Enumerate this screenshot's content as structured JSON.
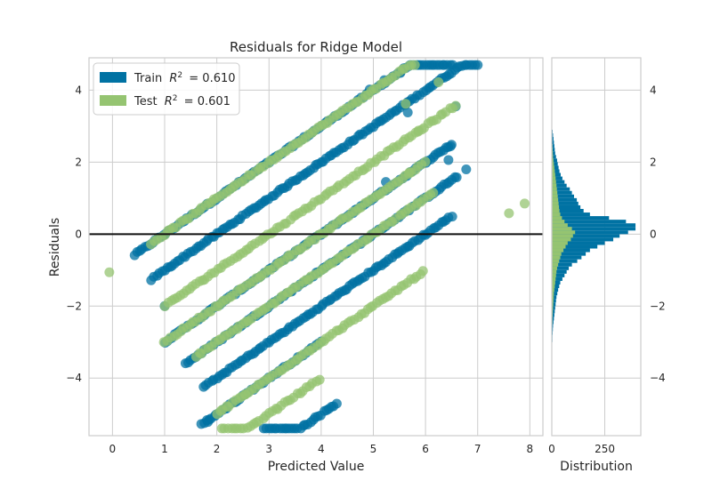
{
  "chart_data": [
    {
      "type": "scatter",
      "title": "Residuals for Ridge Model",
      "xlabel": "Predicted Value",
      "ylabel": "Residuals",
      "xlim": [
        -0.45,
        8.25
      ],
      "ylim": [
        -5.6,
        4.9
      ],
      "xticks": [
        0,
        1,
        2,
        3,
        4,
        5,
        6,
        7,
        8
      ],
      "yticks": [
        -4,
        -2,
        0,
        2,
        4
      ],
      "grid": true,
      "zero_line": 0,
      "legend_position": "top-left",
      "colors": {
        "train": "#0072a3",
        "test": "#95c471",
        "zero_line": "#111111",
        "grid": "#cccccc",
        "axes": "#cccccc"
      },
      "series": [
        {
          "name": "Train",
          "legend_label": "Train $R^2 = 0.610$",
          "r2": 0.61,
          "color": "#0072a3",
          "bands": [
            {
              "offset": 1.0,
              "x_range": [
                0.42,
                6.55
              ]
            },
            {
              "offset": 0.0,
              "x_range": [
                0.75,
                7.0
              ]
            },
            {
              "offset": -1.0,
              "x_range": [
                1.0,
                6.5
              ]
            },
            {
              "offset": -2.0,
              "x_range": [
                1.4,
                6.6
              ]
            },
            {
              "offset": -3.0,
              "x_range": [
                1.75,
                6.5
              ]
            },
            {
              "offset": -4.0,
              "x_range": [
                1.7,
                4.0
              ]
            },
            {
              "offset": -5.0,
              "x_range": [
                2.9,
                4.3
              ]
            }
          ],
          "points": [
            [
              1.83,
              -5.22
            ],
            [
              2.18,
              -4.85
            ],
            [
              5.52,
              4.48
            ],
            [
              5.21,
              4.28
            ],
            [
              4.93,
              4.02
            ],
            [
              6.58,
              3.55
            ],
            [
              4.32,
              3.32
            ],
            [
              5.66,
              3.38
            ],
            [
              6.48,
              2.44
            ],
            [
              6.78,
              1.8
            ],
            [
              6.44,
              2.06
            ],
            [
              1.0,
              -2.0
            ],
            [
              5.24,
              1.45
            ]
          ]
        },
        {
          "name": "Test",
          "legend_label": "Test $R^2 = 0.601$",
          "r2": 0.601,
          "color": "#95c471",
          "bands": [
            {
              "offset": 1.0,
              "x_range": [
                0.75,
                5.8
              ]
            },
            {
              "offset": 0.0,
              "x_range": [
                1.0,
                6.6
              ]
            },
            {
              "offset": -1.0,
              "x_range": [
                1.0,
                6.0
              ]
            },
            {
              "offset": -2.0,
              "x_range": [
                1.6,
                6.2
              ]
            },
            {
              "offset": -3.0,
              "x_range": [
                2.0,
                6.0
              ]
            },
            {
              "offset": -4.0,
              "x_range": [
                2.1,
                4.0
              ]
            }
          ],
          "points": [
            [
              -0.06,
              -1.06
            ],
            [
              2.55,
              -4.45
            ],
            [
              6.25,
              4.22
            ],
            [
              7.6,
              0.58
            ],
            [
              7.9,
              0.85
            ],
            [
              5.68,
              1.68
            ],
            [
              5.62,
              3.62
            ],
            [
              5.86,
              2.85
            ]
          ]
        }
      ],
      "train_hist_series": "Train"
    },
    {
      "type": "bar",
      "orientation": "horizontal",
      "xlabel": "Distribution",
      "xticks": [
        0,
        250
      ],
      "xlim": [
        0,
        420
      ],
      "ylim": [
        -5.6,
        4.9
      ],
      "yticks": [
        -4,
        -2,
        0,
        2,
        4
      ],
      "grid": true,
      "bin_width": 0.1,
      "series": [
        {
          "name": "Train",
          "color": "#0072a3",
          "bin_centers": [
            2.95,
            2.85,
            2.75,
            2.65,
            2.55,
            2.45,
            2.35,
            2.25,
            2.15,
            2.05,
            1.95,
            1.85,
            1.75,
            1.65,
            1.55,
            1.45,
            1.35,
            1.25,
            1.15,
            1.05,
            0.95,
            0.85,
            0.75,
            0.65,
            0.55,
            0.45,
            0.35,
            0.25,
            0.15,
            0.05,
            -0.05,
            -0.15,
            -0.25,
            -0.35,
            -0.45,
            -0.55,
            -0.65,
            -0.75,
            -0.85,
            -0.95,
            -1.05,
            -1.15,
            -1.25,
            -1.35,
            -1.45,
            -1.55,
            -1.65,
            -1.75,
            -1.85,
            -1.95,
            -2.05,
            -2.15,
            -2.25,
            -2.35,
            -2.45,
            -2.55,
            -2.65,
            -2.75,
            -2.85,
            -2.95,
            -3.05,
            -3.15,
            -3.25
          ],
          "counts": [
            2,
            4,
            6,
            8,
            10,
            12,
            14,
            16,
            20,
            25,
            28,
            32,
            36,
            42,
            50,
            60,
            70,
            85,
            95,
            105,
            118,
            125,
            135,
            150,
            180,
            270,
            350,
            395,
            395,
            360,
            320,
            290,
            250,
            215,
            180,
            160,
            140,
            120,
            95,
            80,
            70,
            60,
            50,
            40,
            35,
            30,
            26,
            22,
            20,
            18,
            16,
            14,
            12,
            10,
            8,
            6,
            5,
            4,
            3,
            3,
            2,
            2,
            1
          ]
        },
        {
          "name": "Test",
          "color": "#95c471",
          "bin_centers": [
            2.55,
            2.45,
            2.35,
            2.25,
            2.15,
            2.05,
            1.95,
            1.85,
            1.75,
            1.65,
            1.55,
            1.45,
            1.35,
            1.25,
            1.15,
            1.05,
            0.95,
            0.85,
            0.75,
            0.65,
            0.55,
            0.45,
            0.35,
            0.25,
            0.15,
            0.05,
            -0.05,
            -0.15,
            -0.25,
            -0.35,
            -0.45,
            -0.55,
            -0.65,
            -0.75,
            -0.85,
            -0.95,
            -1.05,
            -1.15,
            -1.25,
            -1.35,
            -1.45,
            -1.55,
            -1.65,
            -1.75,
            -1.85,
            -1.95,
            -2.05,
            -2.15,
            -2.25,
            -2.35,
            -2.45,
            -2.55,
            -2.65,
            -2.75,
            -2.85
          ],
          "counts": [
            2,
            3,
            4,
            5,
            6,
            8,
            10,
            12,
            14,
            16,
            18,
            20,
            22,
            24,
            26,
            28,
            30,
            32,
            34,
            36,
            40,
            48,
            60,
            75,
            95,
            110,
            100,
            90,
            75,
            65,
            55,
            45,
            40,
            35,
            30,
            25,
            22,
            20,
            18,
            16,
            14,
            12,
            10,
            9,
            8,
            7,
            6,
            5,
            4,
            3,
            3,
            2,
            2,
            1,
            1
          ]
        }
      ]
    }
  ]
}
